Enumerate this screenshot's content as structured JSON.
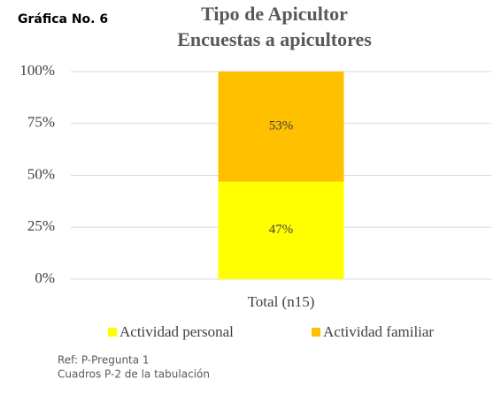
{
  "chart_data": {
    "type": "stacked_bar",
    "label": "Gráfica No. 6",
    "title": "Tipo de Apicultor",
    "subtitle": "Encuestas a apicultores",
    "categories": [
      "Total (n15)"
    ],
    "series": [
      {
        "name": "Actividad personal",
        "color": "#ffff00",
        "values": [
          47
        ],
        "value_labels": [
          "47%"
        ]
      },
      {
        "name": "Actividad familiar",
        "color": "#ffc000",
        "values": [
          53
        ],
        "value_labels": [
          "53%"
        ]
      }
    ],
    "ylim": [
      0,
      100
    ],
    "yticks": [
      {
        "value": 0,
        "label": "0%"
      },
      {
        "value": 25,
        "label": "25%"
      },
      {
        "value": 50,
        "label": "50%"
      },
      {
        "value": 75,
        "label": "75%"
      },
      {
        "value": 100,
        "label": "100%"
      }
    ],
    "grid": true,
    "legend": "bottom",
    "notes": [
      "Ref: P-Pregunta 1",
      "Cuadros P-2 de la tabulación"
    ]
  }
}
